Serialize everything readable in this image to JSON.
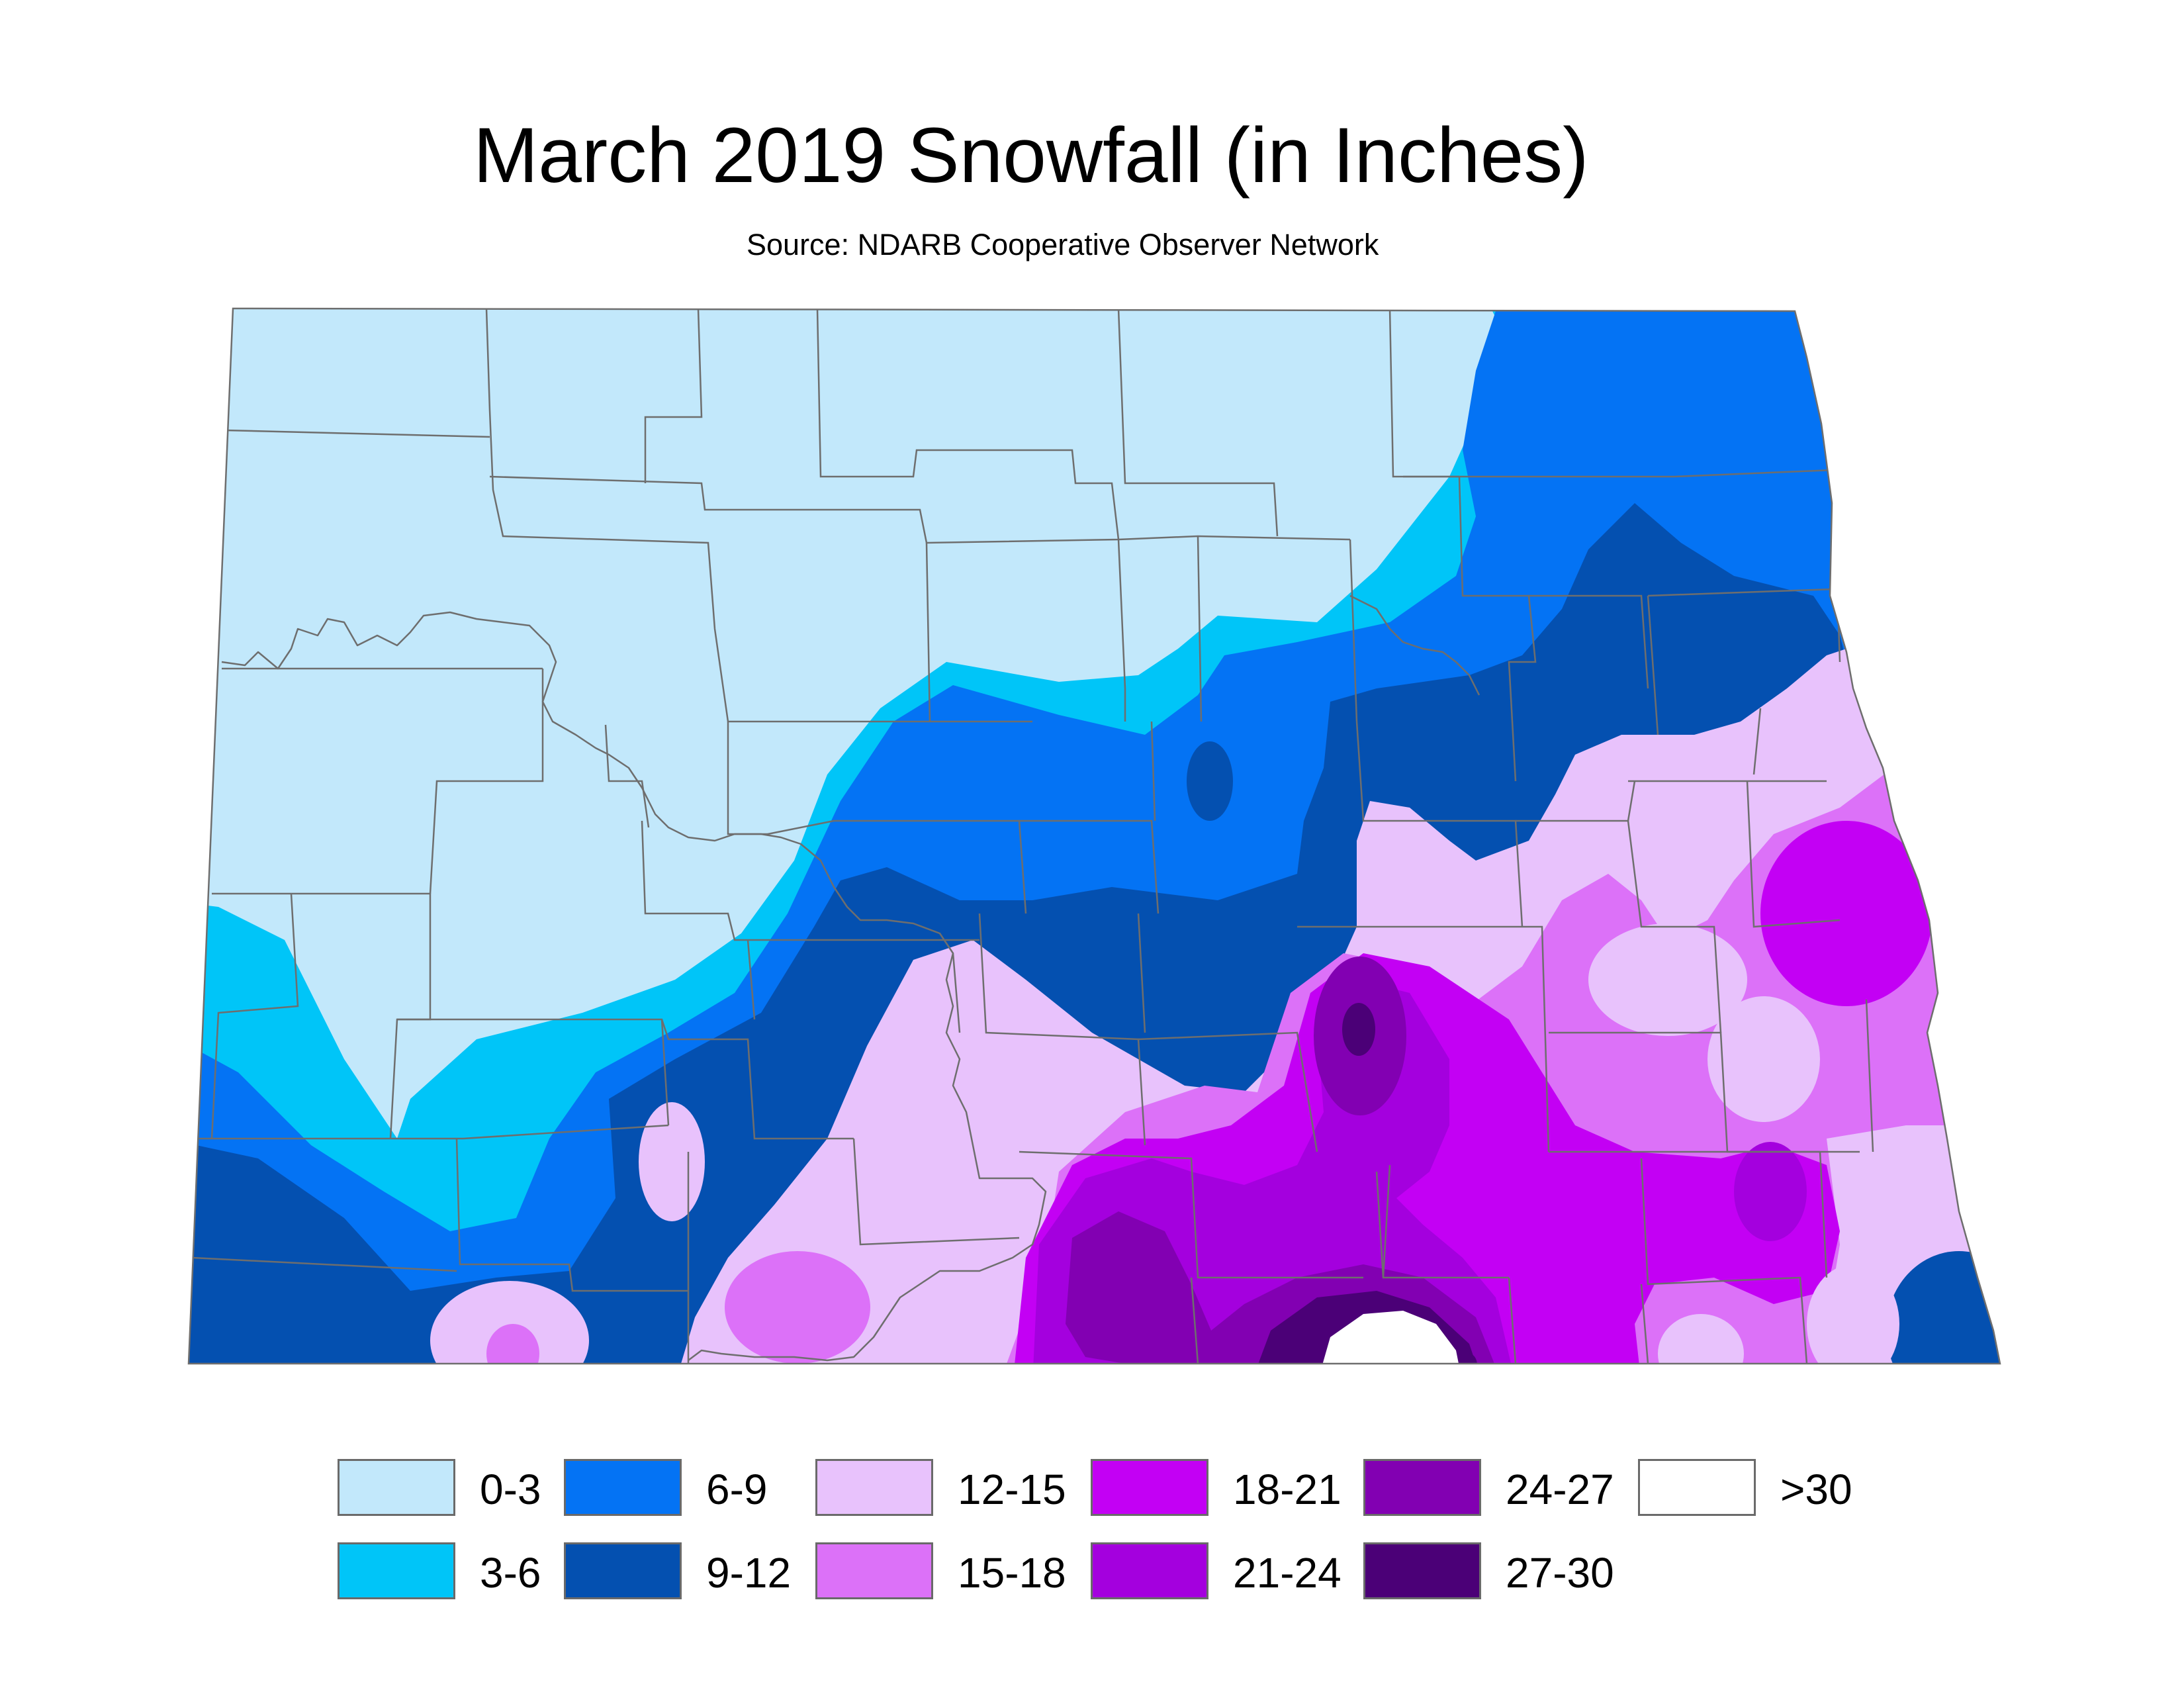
{
  "title": "March 2019 Snowfall (in Inches)",
  "subtitle": "Source: NDARB Cooperative Observer Network",
  "colors": {
    "c0_3": "#c2e8fb",
    "c3_6": "#00c5f8",
    "c6_9": "#0473f4",
    "c9_12": "#0450b0",
    "c12_15": "#e8c2fc",
    "c15_18": "#dc71f8",
    "c18_21": "#c300f4",
    "c21_24": "#a400de",
    "c24_27": "#8200b2",
    "c27_30": "#4b0077",
    "c30": "#ffffff",
    "county_line": "#6e6e6e"
  },
  "legend": [
    {
      "label": "0-3",
      "color": "#c2e8fb"
    },
    {
      "label": "3-6",
      "color": "#00c5f8"
    },
    {
      "label": "6-9",
      "color": "#0473f4"
    },
    {
      "label": "9-12",
      "color": "#0450b0"
    },
    {
      "label": "12-15",
      "color": "#e8c2fc"
    },
    {
      "label": "15-18",
      "color": "#dc71f8"
    },
    {
      "label": "18-21",
      "color": "#c300f4"
    },
    {
      "label": "21-24",
      "color": "#a400de"
    },
    {
      "label": "24-27",
      "color": "#8200b2"
    },
    {
      "label": "27-30",
      "color": "#4b0077"
    },
    {
      "label": ">30",
      "color": "#ffffff"
    }
  ]
}
